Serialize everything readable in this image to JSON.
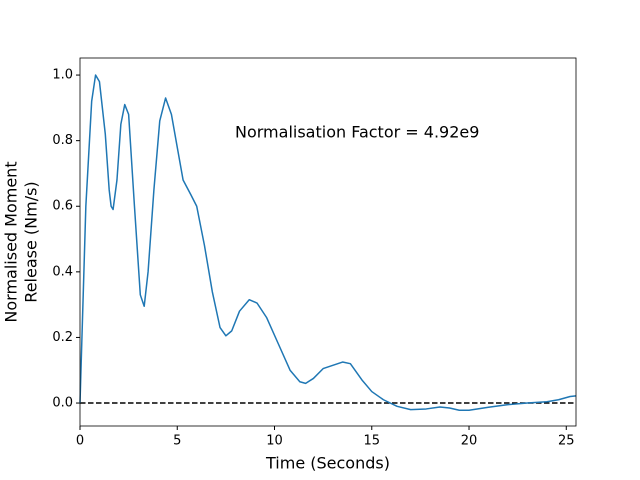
{
  "chart_data": {
    "type": "line",
    "xlabel": "Time (Seconds)",
    "ylabel": [
      "Normalised Moment",
      "Release (Nm/s)"
    ],
    "annotation": "Normalisation Factor = 4.92e9",
    "hline": 0,
    "xlim": [
      0,
      25.5
    ],
    "ylim": [
      -0.07,
      1.052
    ],
    "xticks": [
      0,
      5,
      10,
      15,
      20,
      25
    ],
    "yticks": [
      {
        "value": 0,
        "label": "0.0"
      },
      0.2,
      0.4,
      0.6,
      0.8,
      {
        "value": 1,
        "label": "1.0"
      }
    ],
    "series": [
      {
        "color": "#1f77b4",
        "x": [
          0,
          0.3,
          0.6,
          0.8,
          1.0,
          1.3,
          1.5,
          1.6,
          1.7,
          1.9,
          2.1,
          2.3,
          2.5,
          2.8,
          3.1,
          3.3,
          3.5,
          3.8,
          4.1,
          4.4,
          4.7,
          5.0,
          5.3,
          5.7,
          6.0,
          6.4,
          6.8,
          7.2,
          7.5,
          7.8,
          8.2,
          8.7,
          9.1,
          9.6,
          10.2,
          10.8,
          11.3,
          11.6,
          12.0,
          12.5,
          13.0,
          13.5,
          13.9,
          14.5,
          15.0,
          15.6,
          16.3,
          17.0,
          17.8,
          18.5,
          19.0,
          19.5,
          20.0,
          21.0,
          22.0,
          23.0,
          24.0,
          24.6,
          25.2,
          25.5
        ],
        "values": [
          0,
          0.6,
          0.92,
          1.0,
          0.98,
          0.82,
          0.65,
          0.6,
          0.59,
          0.68,
          0.85,
          0.91,
          0.88,
          0.6,
          0.33,
          0.295,
          0.4,
          0.65,
          0.86,
          0.93,
          0.88,
          0.78,
          0.68,
          0.635,
          0.6,
          0.48,
          0.34,
          0.23,
          0.205,
          0.22,
          0.28,
          0.315,
          0.305,
          0.26,
          0.18,
          0.1,
          0.065,
          0.06,
          0.075,
          0.105,
          0.115,
          0.125,
          0.12,
          0.07,
          0.035,
          0.01,
          -0.01,
          -0.02,
          -0.018,
          -0.012,
          -0.015,
          -0.022,
          -0.022,
          -0.013,
          -0.005,
          0.0,
          0.004,
          0.01,
          0.02,
          0.022
        ]
      }
    ]
  }
}
